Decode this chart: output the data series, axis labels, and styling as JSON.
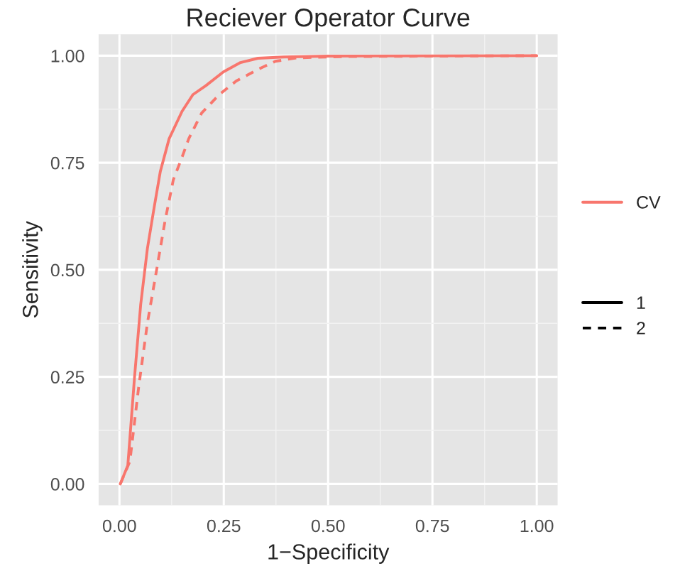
{
  "chart_data": {
    "type": "line",
    "title": "Reciever Operator Curve",
    "xlabel": "1−Specificity",
    "ylabel": "Sensitivity",
    "annotations": [
      "CV"
    ],
    "series": [
      {
        "name": "1",
        "color": "#f8766d",
        "line_style": "solid",
        "x": [
          0.002,
          0.02,
          0.036,
          0.051,
          0.067,
          0.083,
          0.098,
          0.119,
          0.15,
          0.176,
          0.207,
          0.249,
          0.29,
          0.332,
          0.394,
          0.5,
          1.0
        ],
        "values": [
          0,
          0.043,
          0.248,
          0.42,
          0.55,
          0.645,
          0.73,
          0.806,
          0.87,
          0.909,
          0.93,
          0.962,
          0.984,
          0.994,
          0.997,
          0.999,
          1.0
        ]
      },
      {
        "name": "2",
        "color": "#f8766d",
        "line_style": "dashed",
        "x": [
          0.002,
          0.025,
          0.046,
          0.067,
          0.088,
          0.109,
          0.129,
          0.15,
          0.166,
          0.197,
          0.239,
          0.28,
          0.332,
          0.374,
          0.426,
          0.55,
          1.0
        ],
        "values": [
          0,
          0.053,
          0.226,
          0.376,
          0.494,
          0.613,
          0.71,
          0.763,
          0.806,
          0.866,
          0.909,
          0.941,
          0.968,
          0.987,
          0.995,
          0.998,
          1.0
        ]
      }
    ],
    "xlim": [
      -0.05,
      1.05
    ],
    "ylim": [
      -0.05,
      1.05
    ],
    "xticks": [
      {
        "value": 0,
        "label": "0.00"
      },
      {
        "value": 0.25,
        "label": "0.25"
      },
      {
        "value": 0.5,
        "label": "0.50"
      },
      {
        "value": 0.75,
        "label": "0.75"
      },
      {
        "value": 1,
        "label": "1.00"
      }
    ],
    "yticks": [
      {
        "value": 0,
        "label": "0.00"
      },
      {
        "value": 0.25,
        "label": "0.25"
      },
      {
        "value": 0.5,
        "label": "0.50"
      },
      {
        "value": 0.75,
        "label": "0.75"
      },
      {
        "value": 1,
        "label": "1.00"
      }
    ],
    "grid": true,
    "legend": "right"
  }
}
